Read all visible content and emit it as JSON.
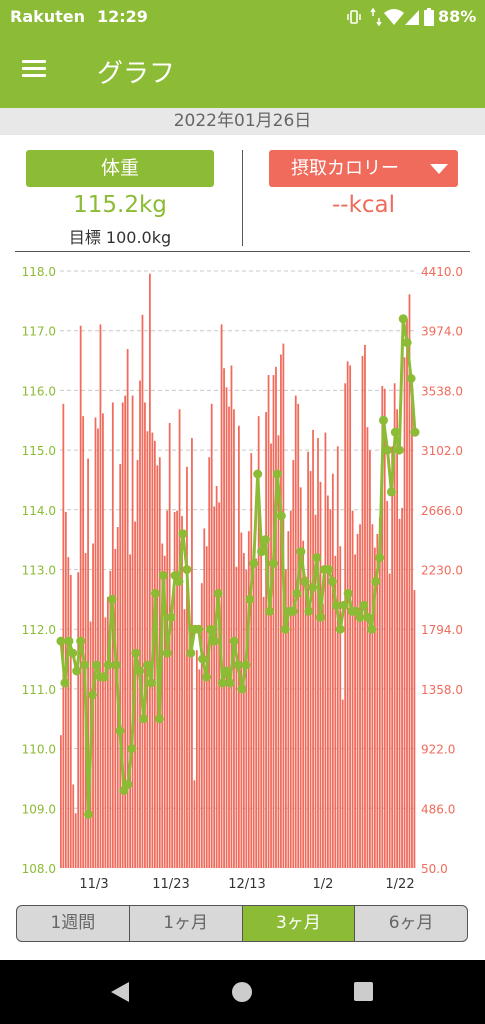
{
  "status": {
    "carrier": "Rakuten",
    "time": "12:29",
    "battery": "88%"
  },
  "appbar": {
    "title": "グラフ"
  },
  "date": "2022年01月26日",
  "weight": {
    "label": "体重",
    "value": "115.2kg",
    "goal": "目標 100.0kg"
  },
  "calorie": {
    "label": "摂取カロリー",
    "value": "--kcal"
  },
  "tabs": [
    "1週間",
    "1ヶ月",
    "3ヶ月",
    "6ヶ月"
  ],
  "active_tab": 2,
  "colors": {
    "green": "#8cbb35",
    "red": "#f06b5c"
  },
  "icons": [
    "menu-icon",
    "vibrate-icon",
    "data-arrows-icon",
    "wifi-icon",
    "cellular-icon",
    "battery-icon",
    "back-icon",
    "home-icon",
    "recent-apps-icon",
    "dropdown-caret-icon"
  ],
  "chart_data": {
    "type": "bar+line",
    "x_ticks": [
      "11/3",
      "11/23",
      "12/13",
      "1/2",
      "1/22"
    ],
    "left_axis": {
      "ticks": [
        "108.0",
        "109.0",
        "110.0",
        "111.0",
        "112.0",
        "113.0",
        "114.0",
        "115.0",
        "116.0",
        "117.0",
        "118.0"
      ],
      "ylim": [
        108.0,
        118.0
      ]
    },
    "right_axis": {
      "ticks": [
        "50.0",
        "486.0",
        "922.0",
        "1358.0",
        "1794.0",
        "2230.0",
        "2666.0",
        "3102.0",
        "3538.0",
        "3974.0",
        "4410.0"
      ],
      "ylim": [
        50.0,
        4410.0
      ]
    },
    "grid": "horizontal dashed",
    "calories": [
      1020,
      3440,
      2650,
      2320,
      2190,
      660,
      450,
      2210,
      4010,
      3350,
      2350,
      3040,
      1850,
      2420,
      3340,
      3260,
      4020,
      3370,
      1880,
      2030,
      2220,
      3450,
      2380,
      2540,
      3000,
      3450,
      3500,
      3840,
      2340,
      3500,
      2580,
      3030,
      3610,
      4090,
      3450,
      3240,
      4390,
      3230,
      3170,
      2990,
      3050,
      2420,
      2330,
      2660,
      3300,
      1960,
      2650,
      2660,
      3400,
      2620,
      1940,
      2980,
      1850,
      3190,
      690,
      1640,
      1500,
      2130,
      2530,
      2400,
      3050,
      3440,
      2690,
      2840,
      2720,
      4020,
      3700,
      3560,
      3420,
      3720,
      3400,
      2250,
      3280,
      2500,
      2350,
      2230,
      2510,
      3080,
      2390,
      2310,
      3350,
      2520,
      2030,
      3380,
      3650,
      3150,
      3650,
      3710,
      3210,
      3800,
      3880,
      2230,
      2510,
      2660,
      3030,
      3500,
      3440,
      2830,
      2440,
      2180,
      3090,
      2950,
      3250,
      2630,
      3190,
      2870,
      1980,
      3230,
      2770,
      2670,
      2930,
      2330,
      3130,
      2400,
      1280,
      3590,
      3750,
      3720,
      2660,
      2340,
      2490,
      2560,
      3790,
      3870,
      3270,
      3100,
      2560,
      2390,
      2490,
      2610,
      3570,
      3550,
      2730,
      2200,
      3130,
      3590,
      3400,
      2600,
      2680,
      3780,
      4060,
      4240,
      3510,
      2080
    ],
    "weights": [
      111.8,
      111.1,
      111.8,
      111.6,
      111.3,
      111.8,
      111.4,
      108.9,
      110.9,
      111.4,
      111.2,
      111.2,
      111.4,
      112.5,
      111.4,
      110.3,
      109.3,
      109.4,
      110.0,
      111.6,
      111.3,
      110.5,
      111.4,
      111.1,
      112.6,
      110.5,
      112.9,
      111.6,
      112.2,
      112.9,
      112.8,
      113.6,
      113.0,
      111.6,
      112.0,
      112.0,
      111.5,
      111.2,
      112.0,
      111.8,
      112.6,
      111.1,
      111.3,
      111.1,
      111.8,
      111.4,
      111.0,
      111.4,
      112.5,
      113.1,
      114.6,
      113.3,
      113.5,
      112.3,
      113.1,
      114.6,
      113.9,
      112.0,
      112.3,
      112.3,
      112.6,
      113.3,
      112.8,
      112.3,
      112.7,
      113.2,
      112.2,
      113.0,
      113.0,
      112.8,
      112.4,
      112.0,
      112.4,
      112.6,
      112.3,
      112.3,
      112.2,
      112.4,
      112.2,
      112.0,
      112.8,
      113.2,
      115.5,
      115.0,
      114.3,
      115.3,
      115.0,
      117.2,
      116.8,
      116.2,
      115.3
    ]
  }
}
